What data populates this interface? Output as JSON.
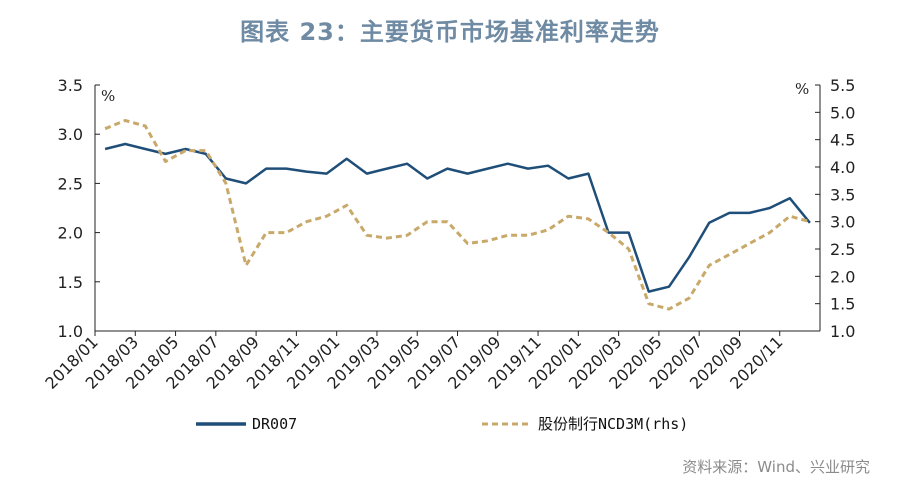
{
  "title": "图表 23：主要货币市场基准利率走势",
  "source": "资料来源：Wind、兴业研究",
  "colors": {
    "dr007": "#1f4e79",
    "ncd": "#c8a96a",
    "axis": "#222222"
  },
  "chart_data": {
    "type": "line",
    "title": "图表 23：主要货币市场基准利率走势",
    "x_tick_labels": [
      "2018/01",
      "2018/03",
      "2018/05",
      "2018/07",
      "2018/09",
      "2018/11",
      "2019/01",
      "2019/03",
      "2019/05",
      "2019/07",
      "2019/09",
      "2019/11",
      "2020/01",
      "2020/03",
      "2020/05",
      "2020/07",
      "2020/09",
      "2020/11"
    ],
    "left_axis": {
      "unit": "%",
      "ylim": [
        1.0,
        3.5
      ],
      "ticks": [
        "1.0",
        "1.5",
        "2.0",
        "2.5",
        "3.0",
        "3.5"
      ]
    },
    "right_axis": {
      "unit": "%",
      "ylim": [
        1.0,
        5.5
      ],
      "ticks": [
        "1.0",
        "1.5",
        "2.0",
        "2.5",
        "3.0",
        "3.5",
        "4.0",
        "4.5",
        "5.0",
        "5.5"
      ]
    },
    "legend": {
      "placement": "bottom"
    },
    "series": [
      {
        "name": "DR007",
        "axis": "left",
        "style": "solid",
        "x": [
          "2018-01",
          "2018-02",
          "2018-03",
          "2018-04",
          "2018-05",
          "2018-06",
          "2018-07",
          "2018-08",
          "2018-09",
          "2018-10",
          "2018-11",
          "2018-12",
          "2019-01",
          "2019-02",
          "2019-03",
          "2019-04",
          "2019-05",
          "2019-06",
          "2019-07",
          "2019-08",
          "2019-09",
          "2019-10",
          "2019-11",
          "2019-12",
          "2020-01",
          "2020-02",
          "2020-03",
          "2020-04",
          "2020-05",
          "2020-06",
          "2020-07",
          "2020-08",
          "2020-09",
          "2020-10",
          "2020-11",
          "2020-12"
        ],
        "values": [
          2.85,
          2.9,
          2.85,
          2.8,
          2.85,
          2.8,
          2.55,
          2.5,
          2.65,
          2.65,
          2.62,
          2.6,
          2.75,
          2.6,
          2.65,
          2.7,
          2.55,
          2.65,
          2.6,
          2.65,
          2.7,
          2.65,
          2.68,
          2.55,
          2.6,
          2.0,
          2.0,
          1.4,
          1.45,
          1.75,
          2.1,
          2.2,
          2.2,
          2.25,
          2.35,
          2.1
        ]
      },
      {
        "name": "股份制行NCD3M(rhs)",
        "axis": "right",
        "style": "dashed",
        "x": [
          "2018-01",
          "2018-02",
          "2018-03",
          "2018-04",
          "2018-05",
          "2018-06",
          "2018-07",
          "2018-08",
          "2018-09",
          "2018-10",
          "2018-11",
          "2018-12",
          "2019-01",
          "2019-02",
          "2019-03",
          "2019-04",
          "2019-05",
          "2019-06",
          "2019-07",
          "2019-08",
          "2019-09",
          "2019-10",
          "2019-11",
          "2019-12",
          "2020-01",
          "2020-02",
          "2020-03",
          "2020-04",
          "2020-05",
          "2020-06",
          "2020-07",
          "2020-08",
          "2020-09",
          "2020-10",
          "2020-11",
          "2020-12"
        ],
        "values": [
          4.7,
          4.85,
          4.75,
          4.1,
          4.3,
          4.3,
          3.7,
          2.2,
          2.8,
          2.8,
          3.0,
          3.1,
          3.3,
          2.75,
          2.7,
          2.75,
          3.0,
          3.0,
          2.6,
          2.65,
          2.75,
          2.75,
          2.85,
          3.1,
          3.05,
          2.8,
          2.5,
          1.5,
          1.4,
          1.6,
          2.2,
          2.4,
          2.6,
          2.8,
          3.1,
          3.0
        ]
      }
    ]
  }
}
